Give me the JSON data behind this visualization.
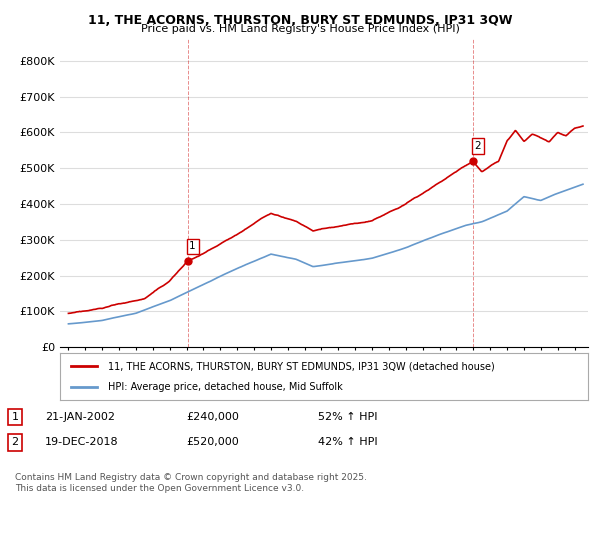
{
  "title_line1": "11, THE ACORNS, THURSTON, BURY ST EDMUNDS, IP31 3QW",
  "title_line2": "Price paid vs. HM Land Registry's House Price Index (HPI)",
  "legend_line1": "11, THE ACORNS, THURSTON, BURY ST EDMUNDS, IP31 3QW (detached house)",
  "legend_line2": "HPI: Average price, detached house, Mid Suffolk",
  "footnote": "Contains HM Land Registry data © Crown copyright and database right 2025.\nThis data is licensed under the Open Government Licence v3.0.",
  "sale1_label": "1",
  "sale1_date": "21-JAN-2002",
  "sale1_price": "£240,000",
  "sale1_hpi": "52% ↑ HPI",
  "sale2_label": "2",
  "sale2_date": "19-DEC-2018",
  "sale2_price": "£520,000",
  "sale2_hpi": "42% ↑ HPI",
  "sale1_x": 2002.06,
  "sale1_y_red": 240000,
  "sale2_x": 2018.96,
  "sale2_y_red": 520000,
  "red_color": "#cc0000",
  "blue_color": "#6699cc",
  "background_color": "#ffffff",
  "grid_color": "#dddddd",
  "ylim": [
    0,
    860000
  ],
  "xlim_start": 1994.5,
  "xlim_end": 2025.8,
  "hpi_base_points": [
    [
      1995.0,
      65000
    ],
    [
      1997.0,
      75000
    ],
    [
      1999.0,
      95000
    ],
    [
      2001.0,
      130000
    ],
    [
      2003.0,
      175000
    ],
    [
      2005.0,
      220000
    ],
    [
      2007.0,
      260000
    ],
    [
      2008.5,
      245000
    ],
    [
      2009.5,
      225000
    ],
    [
      2011.0,
      235000
    ],
    [
      2013.0,
      248000
    ],
    [
      2015.0,
      278000
    ],
    [
      2017.0,
      315000
    ],
    [
      2018.5,
      340000
    ],
    [
      2019.5,
      350000
    ],
    [
      2021.0,
      380000
    ],
    [
      2022.0,
      420000
    ],
    [
      2023.0,
      410000
    ],
    [
      2024.0,
      430000
    ],
    [
      2025.5,
      455000
    ]
  ],
  "red_base_points": [
    [
      1995.0,
      95000
    ],
    [
      1996.5,
      105000
    ],
    [
      1998.0,
      120000
    ],
    [
      1999.5,
      135000
    ],
    [
      2001.0,
      185000
    ],
    [
      2002.06,
      240000
    ],
    [
      2003.0,
      260000
    ],
    [
      2005.0,
      315000
    ],
    [
      2007.0,
      375000
    ],
    [
      2008.5,
      350000
    ],
    [
      2009.5,
      325000
    ],
    [
      2011.0,
      338000
    ],
    [
      2013.0,
      352000
    ],
    [
      2015.0,
      400000
    ],
    [
      2017.0,
      460000
    ],
    [
      2018.5,
      505000
    ],
    [
      2018.96,
      520000
    ],
    [
      2019.5,
      490000
    ],
    [
      2020.5,
      520000
    ],
    [
      2021.0,
      575000
    ],
    [
      2021.5,
      605000
    ],
    [
      2022.0,
      575000
    ],
    [
      2022.5,
      595000
    ],
    [
      2023.0,
      585000
    ],
    [
      2023.5,
      575000
    ],
    [
      2024.0,
      600000
    ],
    [
      2024.5,
      590000
    ],
    [
      2025.0,
      610000
    ],
    [
      2025.5,
      618000
    ]
  ]
}
